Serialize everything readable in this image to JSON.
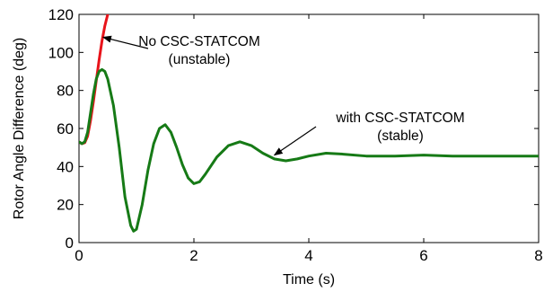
{
  "chart_data": {
    "type": "line",
    "xlabel": "Time (s)",
    "ylabel": "Rotor Angle Difference (deg)",
    "xlim": [
      0,
      8
    ],
    "ylim": [
      0,
      120
    ],
    "xticks": [
      0,
      2,
      4,
      6,
      8
    ],
    "yticks": [
      0,
      20,
      40,
      60,
      80,
      100,
      120
    ],
    "grid": false,
    "series": [
      {
        "color": "#e8141b",
        "points": [
          [
            0,
            53
          ],
          [
            0.05,
            52
          ],
          [
            0.1,
            52.5
          ],
          [
            0.15,
            56
          ],
          [
            0.2,
            64
          ],
          [
            0.25,
            74
          ],
          [
            0.3,
            85
          ],
          [
            0.35,
            96
          ],
          [
            0.4,
            106
          ],
          [
            0.45,
            114
          ],
          [
            0.5,
            120
          ]
        ]
      },
      {
        "color": "#167a16",
        "points": [
          [
            0,
            53
          ],
          [
            0.05,
            52
          ],
          [
            0.1,
            53
          ],
          [
            0.15,
            58
          ],
          [
            0.2,
            68
          ],
          [
            0.25,
            78
          ],
          [
            0.3,
            86
          ],
          [
            0.35,
            90
          ],
          [
            0.4,
            91
          ],
          [
            0.45,
            90
          ],
          [
            0.5,
            86
          ],
          [
            0.6,
            72
          ],
          [
            0.7,
            50
          ],
          [
            0.8,
            24
          ],
          [
            0.9,
            9
          ],
          [
            0.95,
            6
          ],
          [
            1.0,
            7
          ],
          [
            1.1,
            20
          ],
          [
            1.2,
            38
          ],
          [
            1.3,
            52
          ],
          [
            1.4,
            60
          ],
          [
            1.5,
            62
          ],
          [
            1.6,
            58
          ],
          [
            1.7,
            50
          ],
          [
            1.8,
            41
          ],
          [
            1.9,
            34
          ],
          [
            2.0,
            31
          ],
          [
            2.1,
            32
          ],
          [
            2.2,
            36
          ],
          [
            2.4,
            45
          ],
          [
            2.6,
            51
          ],
          [
            2.8,
            53
          ],
          [
            3.0,
            51
          ],
          [
            3.2,
            47
          ],
          [
            3.4,
            44
          ],
          [
            3.6,
            43
          ],
          [
            3.8,
            44
          ],
          [
            4.0,
            45.5
          ],
          [
            4.3,
            47
          ],
          [
            4.6,
            46.5
          ],
          [
            5.0,
            45.5
          ],
          [
            5.5,
            45.5
          ],
          [
            6.0,
            46
          ],
          [
            6.5,
            45.5
          ],
          [
            7.0,
            45.5
          ],
          [
            7.5,
            45.5
          ],
          [
            8.0,
            45.5
          ]
        ]
      }
    ],
    "annotations": [
      {
        "lines": [
          "No CSC-STATCOM",
          "(unstable)"
        ],
        "arrow_to": [
          0.42,
          108
        ]
      },
      {
        "lines": [
          "with CSC-STATCOM",
          "(stable)"
        ],
        "arrow_to": [
          3.4,
          46
        ]
      }
    ]
  }
}
